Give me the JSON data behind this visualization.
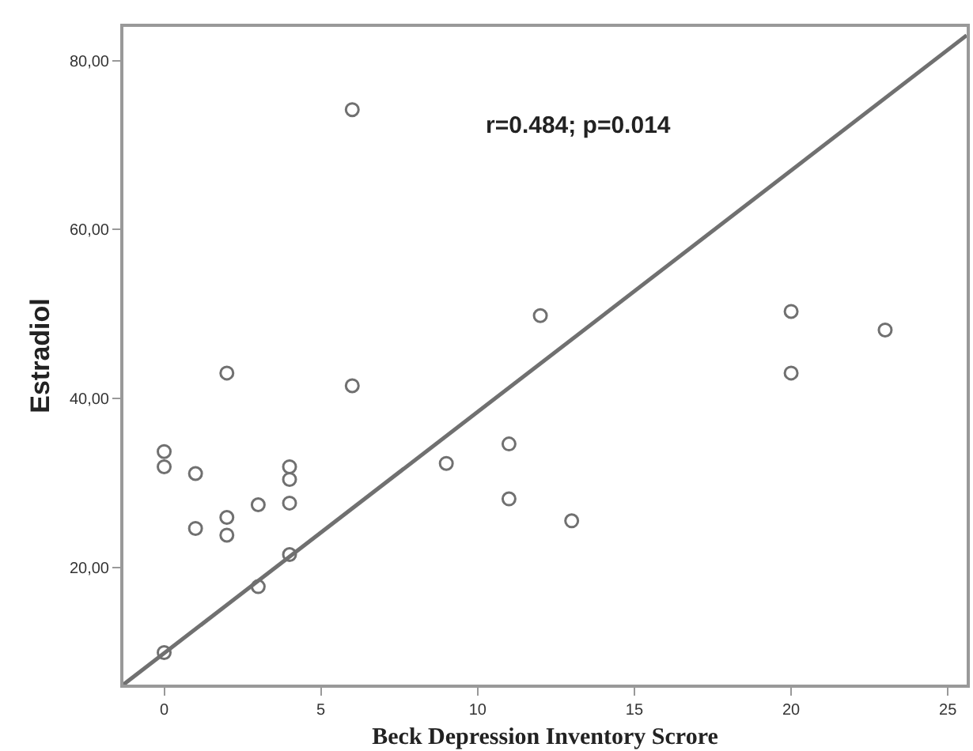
{
  "chart_data": {
    "type": "scatter",
    "xlabel": "Beck Depression Inventory Scrore",
    "ylabel": "Estradiol",
    "annotations": [
      "r=0.484; p=0.014"
    ],
    "xlim": [
      -1.3,
      25.6
    ],
    "ylim": [
      6.1,
      84.0
    ],
    "xticks": [
      0,
      5,
      10,
      15,
      20,
      25
    ],
    "yticks": [
      {
        "value": 20,
        "label": "20,00"
      },
      {
        "value": 40,
        "label": "40,00"
      },
      {
        "value": 60,
        "label": "60,00"
      },
      {
        "value": 80,
        "label": "80,00"
      }
    ],
    "series": [
      {
        "marker": "circle",
        "color": "#707070",
        "x": [
          0,
          0,
          1,
          1,
          2,
          2,
          2,
          3,
          3,
          4,
          4,
          4,
          4,
          6,
          6,
          0,
          9,
          11,
          11,
          12,
          13,
          20,
          20,
          23
        ],
        "values": [
          33.7,
          31.9,
          31.1,
          24.6,
          43.0,
          25.9,
          23.8,
          27.4,
          17.7,
          31.9,
          30.4,
          27.6,
          21.5,
          74.2,
          41.5,
          9.9,
          32.3,
          34.6,
          28.1,
          49.8,
          25.5,
          50.3,
          43.0,
          48.1
        ]
      },
      {
        "type": "line",
        "marker": "none",
        "color": "#707070",
        "line_style": "solid",
        "x": [
          -1.3,
          25.6
        ],
        "values": [
          6.1,
          83.0
        ]
      }
    ]
  }
}
